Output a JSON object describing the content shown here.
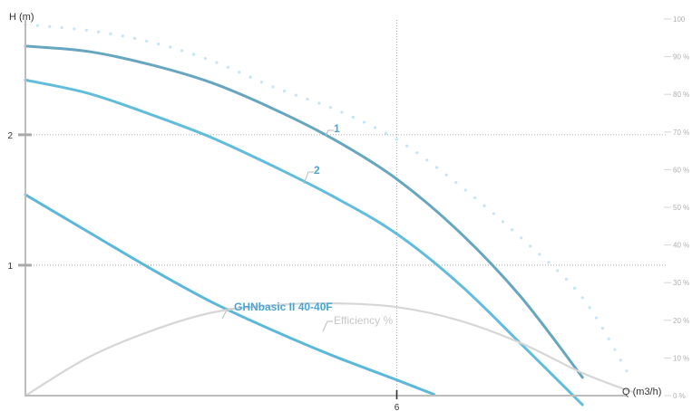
{
  "chart_data": {
    "type": "line",
    "title": "",
    "xlabel": "Q (m3/h)",
    "ylabel": "H (m)",
    "xlim": [
      0,
      9.7
    ],
    "ylim": [
      0,
      2.95
    ],
    "x_ticks": [
      "6"
    ],
    "y_ticks": [
      "1",
      "2"
    ],
    "y2_ticks": [
      "0 %",
      "10 %",
      "20 %",
      "30 %",
      "40 %",
      "50 %",
      "60 %",
      "70 %",
      "80 %",
      "90 %",
      "100"
    ],
    "y2_range": [
      0,
      100
    ],
    "grid": "dotted at x=6, y=1, y=2",
    "series": [
      {
        "name": "1",
        "color": "#66a6c0",
        "x": [
          0,
          1,
          2,
          3,
          4,
          5,
          6,
          7,
          8,
          9
        ],
        "y": [
          2.68,
          2.64,
          2.54,
          2.4,
          2.2,
          1.96,
          1.66,
          1.26,
          0.76,
          0.14
        ]
      },
      {
        "name": "2",
        "color": "#62bcdc",
        "x": [
          0,
          1,
          2,
          3,
          4,
          5,
          6,
          7,
          8,
          9
        ],
        "y": [
          2.42,
          2.32,
          2.16,
          1.98,
          1.76,
          1.52,
          1.24,
          0.86,
          0.4,
          -0.07
        ]
      },
      {
        "name": "GHNbasic II 40-40F",
        "color": "#5cb8da",
        "x": [
          0,
          1,
          2,
          3,
          4,
          5,
          6,
          6.6
        ],
        "y": [
          1.54,
          1.26,
          0.98,
          0.72,
          0.5,
          0.3,
          0.12,
          0.01
        ]
      },
      {
        "name": "Efficiency %",
        "color": "#d6d6d6",
        "axis": "right",
        "x": [
          0,
          1,
          2,
          3,
          4,
          5,
          6,
          7,
          8,
          9,
          9.8
        ],
        "y": [
          0,
          10,
          17,
          22,
          24,
          24.5,
          23.5,
          20,
          14,
          6,
          1
        ]
      },
      {
        "name": "",
        "color": "#c5e5f4",
        "style": "dotted",
        "axis": "right",
        "x": [
          0,
          1,
          2,
          3,
          4,
          5,
          6,
          7,
          8,
          9,
          9.8
        ],
        "y": [
          98.5,
          97,
          94,
          89,
          82,
          76,
          68,
          56,
          42,
          26,
          4
        ]
      }
    ],
    "labels": {
      "curve1": "1",
      "curve2": "2",
      "model": "GHNbasic II 40-40F",
      "efficiency": "Efficiency %"
    }
  }
}
